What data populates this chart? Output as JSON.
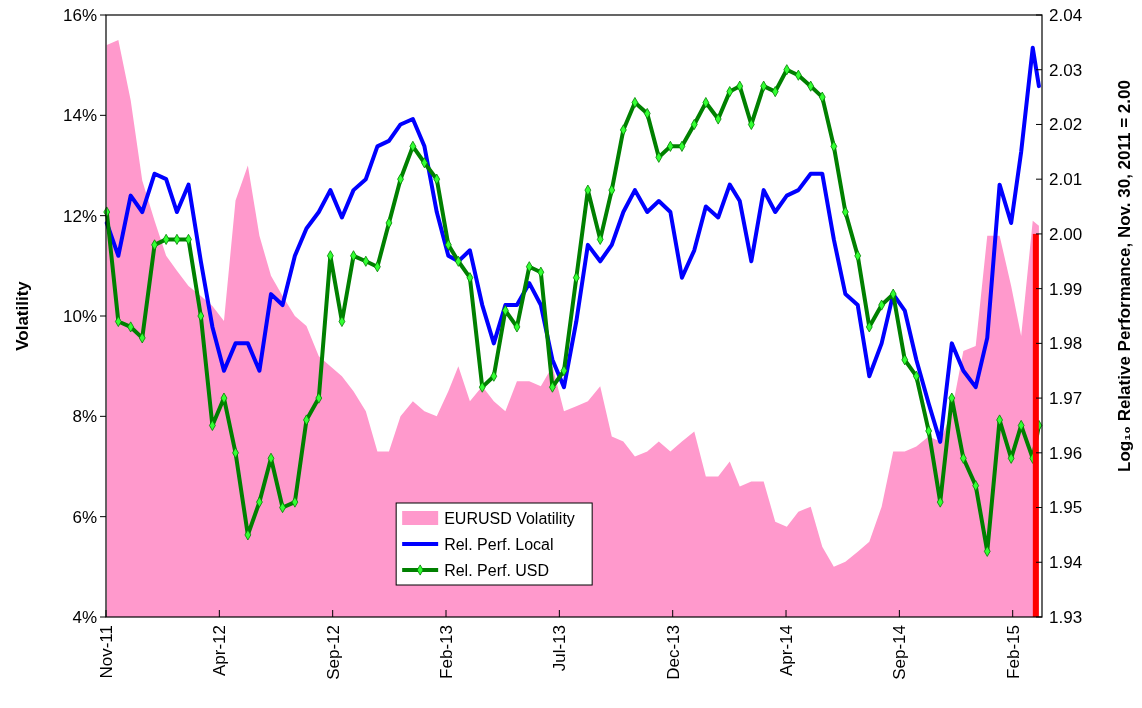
{
  "chart_data": {
    "type": "line",
    "ylabel": "Volatility",
    "y2label": "Log₁₀ Relative Performance, Nov. 30, 2011 = 2.00",
    "x": [
      "2011-12-01",
      "2011-12-16",
      "2012-01-01",
      "2012-01-16",
      "2012-02-01",
      "2012-02-16",
      "2012-03-01",
      "2012-03-16",
      "2012-04-01",
      "2012-04-16",
      "2012-05-01",
      "2012-05-16",
      "2012-06-01",
      "2012-06-16",
      "2012-07-01",
      "2012-07-16",
      "2012-08-01",
      "2012-08-16",
      "2012-09-01",
      "2012-09-16",
      "2012-10-01",
      "2012-10-16",
      "2012-11-01",
      "2012-11-16",
      "2012-12-01",
      "2012-12-16",
      "2013-01-01",
      "2013-01-16",
      "2013-02-01",
      "2013-02-16",
      "2013-03-01",
      "2013-03-16",
      "2013-04-01",
      "2013-04-16",
      "2013-05-01",
      "2013-05-16",
      "2013-06-01",
      "2013-06-16",
      "2013-07-01",
      "2013-07-16",
      "2013-08-01",
      "2013-08-16",
      "2013-09-01",
      "2013-09-16",
      "2013-10-01",
      "2013-10-16",
      "2013-11-01",
      "2013-11-16",
      "2013-12-01",
      "2013-12-16",
      "2014-01-01",
      "2014-01-16",
      "2014-02-01",
      "2014-02-16",
      "2014-03-01",
      "2014-03-16",
      "2014-04-01",
      "2014-04-16",
      "2014-05-01",
      "2014-05-16",
      "2014-06-01",
      "2014-06-16",
      "2014-07-01",
      "2014-07-16",
      "2014-08-01",
      "2014-08-16",
      "2014-09-01",
      "2014-09-16",
      "2014-10-01",
      "2014-10-16",
      "2014-11-01",
      "2014-11-16",
      "2014-12-01",
      "2014-12-16",
      "2015-01-01",
      "2015-01-16",
      "2015-02-01",
      "2015-02-16",
      "2015-03-01",
      "2015-03-16",
      "2015-03-24"
    ],
    "xlim": [
      "2011-11-30",
      "2015-03-28"
    ],
    "xticks": [
      {
        "value": "2011-11-30",
        "label": "Nov-11"
      },
      {
        "value": "2012-04-25",
        "label": "Apr-12"
      },
      {
        "value": "2012-09-19",
        "label": "Sep-12"
      },
      {
        "value": "2013-02-13",
        "label": "Feb-13"
      },
      {
        "value": "2013-07-10",
        "label": "Jul-13"
      },
      {
        "value": "2013-12-04",
        "label": "Dec-13"
      },
      {
        "value": "2014-04-30",
        "label": "Apr-14"
      },
      {
        "value": "2014-09-24",
        "label": "Sep-14"
      },
      {
        "value": "2015-02-18",
        "label": "Feb-15"
      }
    ],
    "ylim": [
      4,
      16
    ],
    "yticks": [
      {
        "value": 4,
        "label": "4%"
      },
      {
        "value": 6,
        "label": "6%"
      },
      {
        "value": 8,
        "label": "8%"
      },
      {
        "value": 10,
        "label": "10%"
      },
      {
        "value": 12,
        "label": "12%"
      },
      {
        "value": 14,
        "label": "14%"
      },
      {
        "value": 16,
        "label": "16%"
      }
    ],
    "y2lim": [
      1.93,
      2.04
    ],
    "y2ticks": [
      1.93,
      1.94,
      1.95,
      1.96,
      1.97,
      1.98,
      1.99,
      {
        "value": 2,
        "label": "2.00"
      },
      2.01,
      2.02,
      2.03,
      2.04
    ],
    "grid": false,
    "legend": "bottom",
    "series": [
      {
        "name": "EURUSD Volatility",
        "type": "area",
        "color": "#ff99cc",
        "values": [
          15.4,
          15.5,
          14.3,
          12.7,
          11.9,
          11.2,
          10.9,
          10.6,
          10.4,
          10.2,
          9.9,
          12.3,
          13.0,
          11.6,
          10.8,
          10.4,
          10.0,
          9.8,
          9.2,
          9.0,
          8.8,
          8.5,
          8.1,
          7.3,
          7.3,
          8.0,
          8.3,
          8.1,
          8.0,
          8.5,
          9.0,
          8.3,
          8.6,
          8.3,
          8.1,
          8.7,
          8.7,
          8.6,
          9.0,
          8.1,
          8.2,
          8.3,
          8.6,
          7.6,
          7.5,
          7.2,
          7.3,
          7.5,
          7.3,
          7.5,
          7.7,
          6.8,
          6.8,
          7.1,
          6.6,
          6.7,
          6.7,
          5.9,
          5.8,
          6.1,
          6.2,
          5.4,
          5.0,
          5.1,
          5.3,
          5.5,
          6.2,
          7.3,
          7.3,
          7.4,
          7.6,
          7.5,
          8.1,
          9.3,
          9.4,
          11.6,
          11.6,
          10.6,
          9.6,
          11.9,
          11.8
        ]
      },
      {
        "name": "Rel. Perf. Local",
        "axis": "y2",
        "color": "#0000ff",
        "marker": "none",
        "values": [
          2.002,
          1.996,
          2.007,
          2.004,
          2.011,
          2.01,
          2.004,
          2.009,
          1.995,
          1.983,
          1.975,
          1.98,
          1.98,
          1.975,
          1.989,
          1.987,
          1.996,
          2.001,
          2.004,
          2.008,
          2.003,
          2.008,
          2.01,
          2.016,
          2.017,
          2.02,
          2.021,
          2.016,
          2.004,
          1.996,
          1.995,
          1.997,
          1.987,
          1.98,
          1.987,
          1.987,
          1.991,
          1.987,
          1.977,
          1.972,
          1.984,
          1.998,
          1.995,
          1.998,
          2.004,
          2.008,
          2.004,
          2.006,
          2.004,
          1.992,
          1.997,
          2.005,
          2.003,
          2.009,
          2.006,
          1.995,
          2.008,
          2.004,
          2.007,
          2.008,
          2.011,
          2.011,
          1.999,
          1.989,
          1.987,
          1.974,
          1.98,
          1.989,
          1.986,
          1.977,
          1.969,
          1.962,
          1.98,
          1.975,
          1.972,
          1.981,
          2.009,
          2.002,
          2.015,
          2.034,
          2.027
        ]
      },
      {
        "name": "Rel. Perf. USD",
        "axis": "y2",
        "color": "#008000",
        "marker": "diamond",
        "values": [
          2.004,
          1.984,
          1.983,
          1.981,
          1.998,
          1.999,
          1.999,
          1.999,
          1.985,
          1.965,
          1.97,
          1.96,
          1.945,
          1.951,
          1.959,
          1.95,
          1.951,
          1.966,
          1.97,
          1.996,
          1.984,
          1.996,
          1.995,
          1.994,
          2.002,
          2.01,
          2.016,
          2.013,
          2.01,
          1.998,
          1.995,
          1.992,
          1.972,
          1.974,
          1.986,
          1.983,
          1.994,
          1.993,
          1.972,
          1.975,
          1.992,
          2.008,
          1.999,
          2.008,
          2.019,
          2.024,
          2.022,
          2.014,
          2.016,
          2.016,
          2.02,
          2.024,
          2.021,
          2.026,
          2.027,
          2.02,
          2.027,
          2.026,
          2.03,
          2.029,
          2.027,
          2.025,
          2.016,
          2.004,
          1.996,
          1.983,
          1.987,
          1.989,
          1.977,
          1.974,
          1.964,
          1.951,
          1.97,
          1.959,
          1.954,
          1.942,
          1.966,
          1.959,
          1.965,
          1.959,
          1.965
        ]
      },
      {
        "type": "bar",
        "axis": "y2",
        "color": "#ff0000",
        "x": [
          "2015-03-20"
        ],
        "values": [
          2.0
        ]
      }
    ]
  }
}
